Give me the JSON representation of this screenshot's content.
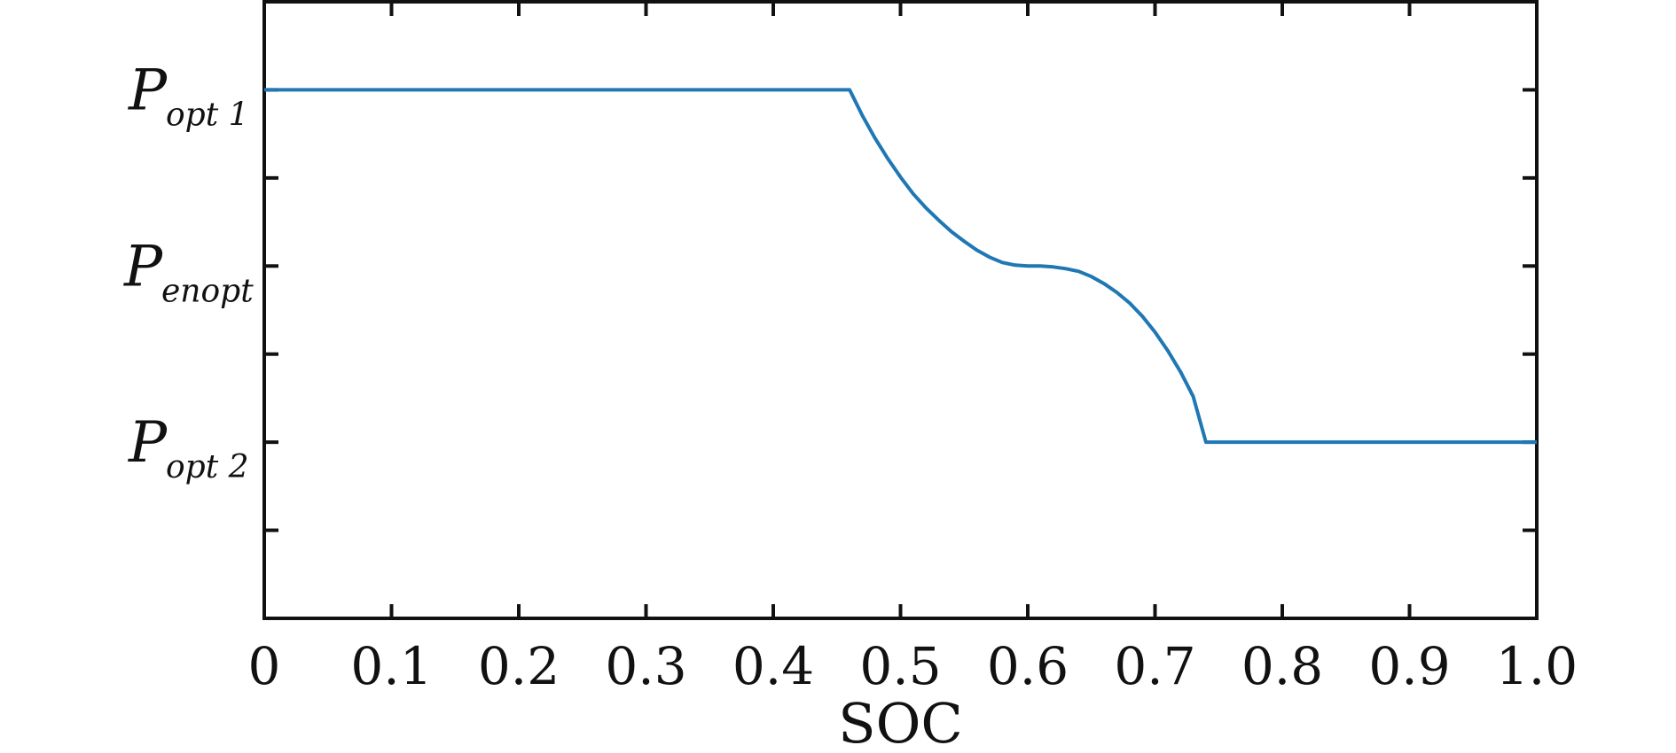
{
  "chart_data": {
    "type": "line",
    "xlabel": "SOC",
    "ylabel": "",
    "xlim": [
      0,
      1.0
    ],
    "ylim": [
      -2,
      5
    ],
    "grid": false,
    "legend": "none",
    "x_ticks": [
      0,
      0.1,
      0.2,
      0.3,
      0.4,
      0.5,
      0.6,
      0.7,
      0.8,
      0.9,
      1.0
    ],
    "x_tick_labels": [
      "0",
      "0.1",
      "0.2",
      "0.3",
      "0.4",
      "0.5",
      "0.6",
      "0.7",
      "0.8",
      "0.9",
      "1.0"
    ],
    "y_ticks_minor": [
      -1,
      1,
      3
    ],
    "y_tick_labels": [
      {
        "value": 4,
        "main": "P",
        "sub": "opt 1"
      },
      {
        "value": 2,
        "main": "P",
        "sub": "enopt"
      },
      {
        "value": 0,
        "main": "P",
        "sub": "opt 2"
      }
    ],
    "series": [
      {
        "color": "#1f77b4",
        "x": [
          0.0,
          0.46,
          0.47,
          0.48,
          0.49,
          0.5,
          0.51,
          0.52,
          0.53,
          0.54,
          0.55,
          0.56,
          0.57,
          0.58,
          0.59,
          0.6,
          0.61,
          0.62,
          0.63,
          0.64,
          0.65,
          0.66,
          0.67,
          0.68,
          0.69,
          0.7,
          0.71,
          0.72,
          0.73,
          0.74,
          1.0
        ],
        "y": [
          4.0,
          4.0,
          3.71,
          3.45,
          3.22,
          3.01,
          2.82,
          2.66,
          2.52,
          2.39,
          2.28,
          2.18,
          2.1,
          2.04,
          2.01,
          2.0,
          2.0,
          1.99,
          1.97,
          1.94,
          1.88,
          1.8,
          1.7,
          1.58,
          1.43,
          1.25,
          1.04,
          0.8,
          0.52,
          0.0,
          0.0
        ]
      }
    ]
  }
}
